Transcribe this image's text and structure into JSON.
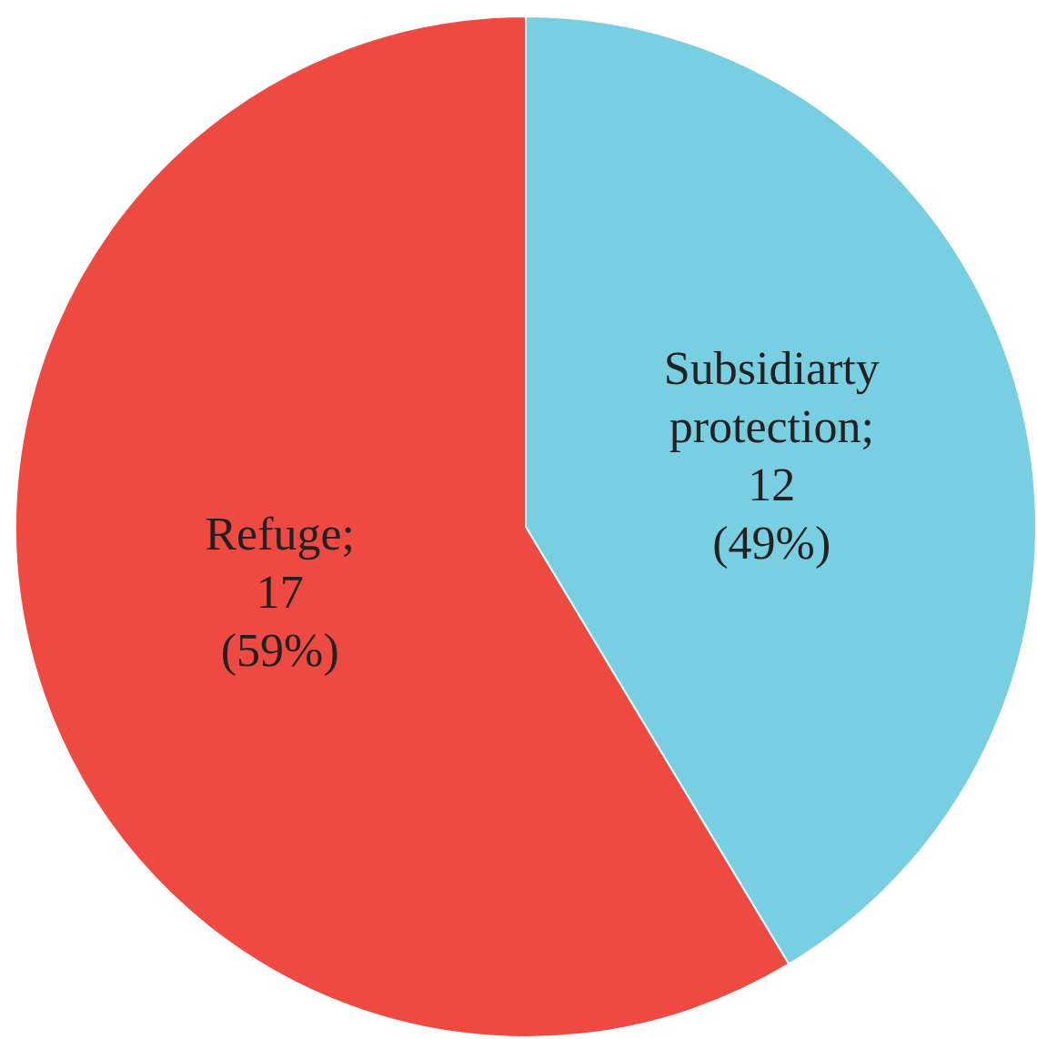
{
  "chart_data": {
    "type": "pie",
    "categories": [
      "Subsidiarty protection",
      "Refuge"
    ],
    "values": [
      12,
      17
    ],
    "colors": [
      "#79cfe2",
      "#ef4a42"
    ],
    "value_labels": [
      "; 12 (49%)",
      "; 17 (59%)"
    ],
    "legend": false
  }
}
